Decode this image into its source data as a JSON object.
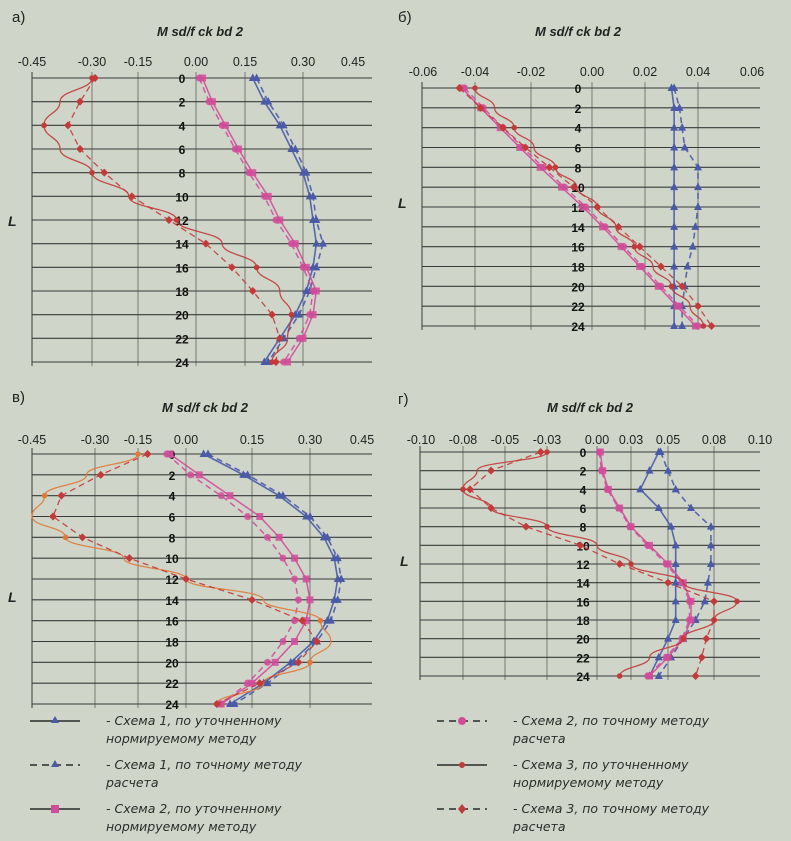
{
  "y_axis_label": "L",
  "row_labels": [
    "0",
    "2",
    "4",
    "6",
    "8",
    "10",
    "12",
    "14",
    "16",
    "18",
    "20",
    "22",
    "24"
  ],
  "colors": {
    "blue": "#4a5aa8",
    "pink": "#d24b9a",
    "red": "#c23a3a",
    "orange": "#e07a3a",
    "grid": "#3a3a3a",
    "bg": "#cfd6c9"
  },
  "chart_data": [
    {
      "panel_label": "а)",
      "type": "line",
      "title": "M sd/f ck bd 2",
      "xticks": [
        "-0.45",
        "-0.30",
        "-0.15",
        "0.00",
        "0.15",
        "0.30",
        "0.45"
      ],
      "xlim": [
        -0.45,
        0.45
      ],
      "ylabel": "L",
      "y": [
        0,
        2,
        4,
        6,
        8,
        10,
        12,
        14,
        16,
        18,
        20,
        22,
        24
      ],
      "series": [
        {
          "name": "Схема 1, по уточненному нормируемому методу",
          "values": [
            0.17,
            0.2,
            0.24,
            0.27,
            0.3,
            0.32,
            0.33,
            0.34,
            0.33,
            0.31,
            0.28,
            0.24,
            0.2
          ]
        },
        {
          "name": "Схема 1, по точному методу расчета",
          "values": [
            0.18,
            0.21,
            0.25,
            0.28,
            0.31,
            0.33,
            0.34,
            0.36,
            0.34,
            0.32,
            0.29,
            0.25,
            0.21
          ]
        },
        {
          "name": "Схема 2, по уточненному нормируемому методу",
          "values": [
            0.02,
            0.05,
            0.09,
            0.13,
            0.17,
            0.21,
            0.24,
            0.28,
            0.31,
            0.34,
            0.33,
            0.3,
            0.26
          ]
        },
        {
          "name": "Схема 2, по точному методу расчета",
          "values": [
            0.01,
            0.04,
            0.08,
            0.12,
            0.16,
            0.2,
            0.23,
            0.27,
            0.3,
            0.33,
            0.32,
            0.29,
            0.25
          ]
        },
        {
          "name": "Схема 3, по уточненному нормируемому методу",
          "values": [
            -0.3,
            -0.38,
            -0.42,
            -0.38,
            -0.3,
            -0.18,
            -0.05,
            0.08,
            0.18,
            0.24,
            0.27,
            0.26,
            0.22
          ]
        },
        {
          "name": "Схема 3, по точному методу расчета",
          "values": [
            -0.29,
            -0.33,
            -0.36,
            -0.33,
            -0.26,
            -0.17,
            -0.07,
            0.03,
            0.11,
            0.17,
            0.22,
            0.24,
            0.23
          ]
        }
      ]
    },
    {
      "panel_label": "б)",
      "type": "line",
      "title": "M sd/f ck bd 2",
      "xticks": [
        "-0.06",
        "-0.04",
        "-0.02",
        "0.00",
        "0.02",
        "0.04",
        "0.06"
      ],
      "xlim": [
        -0.06,
        0.06
      ],
      "ylabel": "L",
      "y": [
        0,
        2,
        4,
        6,
        8,
        10,
        12,
        14,
        16,
        18,
        20,
        22,
        24
      ],
      "series": [
        {
          "name": "Схема 1, по уточненному нормируемому методу",
          "values": [
            0.03,
            0.031,
            0.031,
            0.031,
            0.031,
            0.031,
            0.031,
            0.031,
            0.031,
            0.031,
            0.031,
            0.031,
            0.031
          ]
        },
        {
          "name": "Схема 1, по точному методу расчета",
          "values": [
            0.031,
            0.033,
            0.034,
            0.035,
            0.04,
            0.04,
            0.04,
            0.039,
            0.038,
            0.036,
            0.035,
            0.034,
            0.034
          ]
        },
        {
          "name": "Схема 2, по уточненному нормируемому методу",
          "values": [
            -0.045,
            -0.038,
            -0.031,
            -0.024,
            -0.017,
            -0.01,
            -0.003,
            0.004,
            0.011,
            0.018,
            0.025,
            0.032,
            0.039
          ]
        },
        {
          "name": "Схема 2, по точному методу расчета",
          "values": [
            -0.044,
            -0.037,
            -0.03,
            -0.023,
            -0.016,
            -0.009,
            -0.002,
            0.005,
            0.012,
            0.019,
            0.026,
            0.033,
            0.04
          ]
        },
        {
          "name": "Схема 3, по уточненному нормируемому методу",
          "values": [
            -0.04,
            -0.033,
            -0.026,
            -0.019,
            -0.012,
            -0.005,
            0.002,
            0.009,
            0.016,
            0.023,
            0.03,
            0.037,
            0.042
          ]
        },
        {
          "name": "Схема 3, по точному методу расчета",
          "values": [
            -0.046,
            -0.038,
            -0.03,
            -0.022,
            -0.014,
            -0.006,
            0.002,
            0.01,
            0.018,
            0.026,
            0.034,
            0.04,
            0.045
          ]
        }
      ]
    },
    {
      "panel_label": "в)",
      "type": "line",
      "title": "M sd/f ck bd 2",
      "xticks": [
        "-0.45",
        "-0.30",
        "-0.15",
        "0.00",
        "0.15",
        "0.30",
        "0.45"
      ],
      "xlim": [
        -0.45,
        0.45
      ],
      "ylabel": "L",
      "y": [
        0,
        2,
        4,
        6,
        8,
        10,
        12,
        14,
        16,
        18,
        20,
        22,
        24
      ],
      "series": [
        {
          "name": "Схема 1, по уточненному нормируемому методу",
          "values": [
            0.04,
            0.13,
            0.22,
            0.29,
            0.34,
            0.37,
            0.38,
            0.37,
            0.35,
            0.31,
            0.25,
            0.18,
            0.1
          ]
        },
        {
          "name": "Схема 1, по точному методу расчета",
          "values": [
            0.05,
            0.14,
            0.23,
            0.3,
            0.35,
            0.38,
            0.39,
            0.38,
            0.36,
            0.32,
            0.26,
            0.19,
            0.11
          ]
        },
        {
          "name": "Схема 2, по уточненному нормируемому методу",
          "values": [
            -0.05,
            0.03,
            0.1,
            0.17,
            0.22,
            0.26,
            0.29,
            0.3,
            0.29,
            0.26,
            0.21,
            0.15,
            0.08
          ]
        },
        {
          "name": "Схема 2, по точному методу расчета",
          "values": [
            -0.06,
            0.01,
            0.08,
            0.14,
            0.19,
            0.23,
            0.26,
            0.27,
            0.26,
            0.23,
            0.19,
            0.14,
            0.08
          ]
        },
        {
          "name": "Схема 3, по уточненному нормируемому методу",
          "values": [
            -0.15,
            -0.32,
            -0.42,
            -0.45,
            -0.37,
            -0.2,
            0.0,
            0.18,
            0.33,
            0.36,
            0.3,
            0.18,
            0.07
          ]
        },
        {
          "name": "Схема 3, по точному методу расчета",
          "values": [
            -0.12,
            -0.28,
            -0.38,
            -0.4,
            -0.33,
            -0.18,
            0.0,
            0.15,
            0.28,
            0.32,
            0.27,
            0.17,
            0.07
          ]
        }
      ]
    },
    {
      "panel_label": "г)",
      "type": "line",
      "title": "M sd/f ck bd 2",
      "xticks": [
        "-0.10",
        "-0.08",
        "-0.05",
        "-0.03",
        "0.00",
        "0.03",
        "0.05",
        "0.08",
        "0.10"
      ],
      "xlim": [
        -0.1,
        0.1
      ],
      "ylabel": "L",
      "y": [
        0,
        2,
        4,
        6,
        8,
        10,
        12,
        14,
        16,
        18,
        20,
        22,
        24
      ],
      "series": [
        {
          "name": "Схема 1, по уточненному нормируемому методу",
          "values": [
            0.045,
            0.04,
            0.035,
            0.045,
            0.052,
            0.055,
            0.055,
            0.055,
            0.055,
            0.055,
            0.05,
            0.045,
            0.04
          ]
        },
        {
          "name": "Схема 1, по точному методу расчета",
          "values": [
            0.046,
            0.05,
            0.055,
            0.065,
            0.078,
            0.078,
            0.078,
            0.076,
            0.074,
            0.068,
            0.06,
            0.052,
            0.045
          ]
        },
        {
          "name": "Схема 2, по уточненному нормируемому методу",
          "values": [
            0.003,
            0.005,
            0.01,
            0.02,
            0.03,
            0.04,
            0.05,
            0.06,
            0.065,
            0.065,
            0.06,
            0.05,
            0.04
          ]
        },
        {
          "name": "Схема 2, по точному методу расчета",
          "values": [
            0.002,
            0.004,
            0.009,
            0.019,
            0.029,
            0.039,
            0.049,
            0.059,
            0.064,
            0.064,
            0.059,
            0.049,
            0.039
          ]
        },
        {
          "name": "Схема 3, по уточненному нормируемому методу",
          "values": [
            -0.03,
            -0.07,
            -0.08,
            -0.06,
            -0.03,
            0.0,
            0.03,
            0.06,
            0.09,
            0.08,
            0.06,
            0.04,
            0.02
          ]
        },
        {
          "name": "Схема 3, по точному методу расчета",
          "values": [
            -0.033,
            -0.06,
            -0.075,
            -0.06,
            -0.04,
            -0.01,
            0.02,
            0.05,
            0.08,
            0.08,
            0.075,
            0.072,
            0.068
          ]
        }
      ]
    }
  ],
  "legend": [
    {
      "text": "- Схема 1, по уточненному нормируемому методу"
    },
    {
      "text": "- Схема 1, по точному методу расчета"
    },
    {
      "text": "- Схема 2, по уточненному нормируемому методу"
    },
    {
      "text": "- Схема 2, по точному методу расчета"
    },
    {
      "text": "- Схема 3, по уточненному нормируемому методу"
    },
    {
      "text": "- Схема 3, по точному методу расчета"
    }
  ]
}
